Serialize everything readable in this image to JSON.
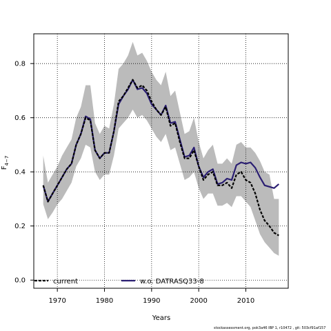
{
  "chart_data": {
    "type": "line",
    "title": "",
    "xlabel": "Years",
    "ylabel": "F",
    "ylabel_sub": "4−7",
    "xlim": [
      1965,
      2019
    ],
    "ylim": [
      -0.03,
      0.91
    ],
    "xticks": [
      1970,
      1980,
      1990,
      2000,
      2010
    ],
    "xtick_labels": [
      "1970",
      "1980",
      "1990",
      "2000",
      "2010"
    ],
    "yticks": [
      0.0,
      0.2,
      0.4,
      0.6,
      0.8
    ],
    "ytick_labels": [
      "0.0",
      "0.2",
      "0.4",
      "0.6",
      "0.8"
    ],
    "grid": true,
    "legend_position": "bottom",
    "x": [
      1967,
      1968,
      1969,
      1970,
      1971,
      1972,
      1973,
      1974,
      1975,
      1976,
      1977,
      1978,
      1979,
      1980,
      1981,
      1982,
      1983,
      1984,
      1985,
      1986,
      1987,
      1988,
      1989,
      1990,
      1991,
      1992,
      1993,
      1994,
      1995,
      1996,
      1997,
      1998,
      1999,
      2000,
      2001,
      2002,
      2003,
      2004,
      2005,
      2006,
      2007,
      2008,
      2009,
      2010,
      2011,
      2012,
      2013,
      2014,
      2015,
      2016,
      2017
    ],
    "series": [
      {
        "name": "current",
        "color": "#000000",
        "dashed": true,
        "values": [
          0.35,
          0.29,
          0.32,
          0.35,
          0.38,
          0.41,
          0.43,
          0.5,
          0.54,
          0.6,
          0.59,
          0.48,
          0.45,
          0.47,
          0.47,
          0.55,
          0.66,
          0.68,
          0.71,
          0.74,
          0.71,
          0.72,
          0.7,
          0.66,
          0.63,
          0.61,
          0.64,
          0.57,
          0.58,
          0.51,
          0.45,
          0.45,
          0.48,
          0.42,
          0.37,
          0.39,
          0.4,
          0.35,
          0.35,
          0.36,
          0.34,
          0.39,
          0.4,
          0.37,
          0.36,
          0.32,
          0.26,
          0.22,
          0.2,
          0.175,
          0.165
        ]
      },
      {
        "name": "w.o. DATRASQ33-8",
        "color": "#2a1e72",
        "dashed": false,
        "values": [
          0.35,
          0.29,
          0.32,
          0.35,
          0.38,
          0.41,
          0.43,
          0.5,
          0.54,
          0.605,
          0.595,
          0.48,
          0.45,
          0.47,
          0.47,
          0.55,
          0.65,
          0.68,
          0.705,
          0.74,
          0.705,
          0.71,
          0.69,
          0.65,
          0.63,
          0.61,
          0.645,
          0.58,
          0.585,
          0.52,
          0.455,
          0.46,
          0.49,
          0.42,
          0.38,
          0.4,
          0.41,
          0.355,
          0.36,
          0.375,
          0.37,
          0.425,
          0.435,
          0.43,
          0.435,
          0.415,
          0.38,
          0.35,
          0.345,
          0.34,
          0.355
        ]
      }
    ],
    "band": {
      "color": "#bbbbbb",
      "upper": [
        0.46,
        0.36,
        0.39,
        0.42,
        0.46,
        0.49,
        0.52,
        0.6,
        0.64,
        0.72,
        0.72,
        0.58,
        0.54,
        0.57,
        0.56,
        0.65,
        0.78,
        0.8,
        0.83,
        0.88,
        0.83,
        0.84,
        0.81,
        0.77,
        0.74,
        0.72,
        0.77,
        0.68,
        0.7,
        0.62,
        0.54,
        0.55,
        0.6,
        0.51,
        0.45,
        0.48,
        0.5,
        0.43,
        0.43,
        0.45,
        0.43,
        0.5,
        0.51,
        0.49,
        0.49,
        0.47,
        0.44,
        0.4,
        0.39,
        0.3,
        0.3
      ],
      "lower": [
        0.28,
        0.225,
        0.25,
        0.28,
        0.3,
        0.33,
        0.36,
        0.42,
        0.45,
        0.5,
        0.49,
        0.4,
        0.37,
        0.39,
        0.39,
        0.46,
        0.56,
        0.58,
        0.6,
        0.63,
        0.6,
        0.61,
        0.59,
        0.56,
        0.53,
        0.51,
        0.54,
        0.48,
        0.49,
        0.43,
        0.37,
        0.38,
        0.4,
        0.34,
        0.3,
        0.32,
        0.32,
        0.275,
        0.275,
        0.285,
        0.27,
        0.31,
        0.31,
        0.29,
        0.27,
        0.22,
        0.17,
        0.14,
        0.12,
        0.1,
        0.09
      ]
    }
  },
  "footer_text": "stockassessment.org, pok3a46 IBP 1, r10472 , git: 503cf91af157"
}
